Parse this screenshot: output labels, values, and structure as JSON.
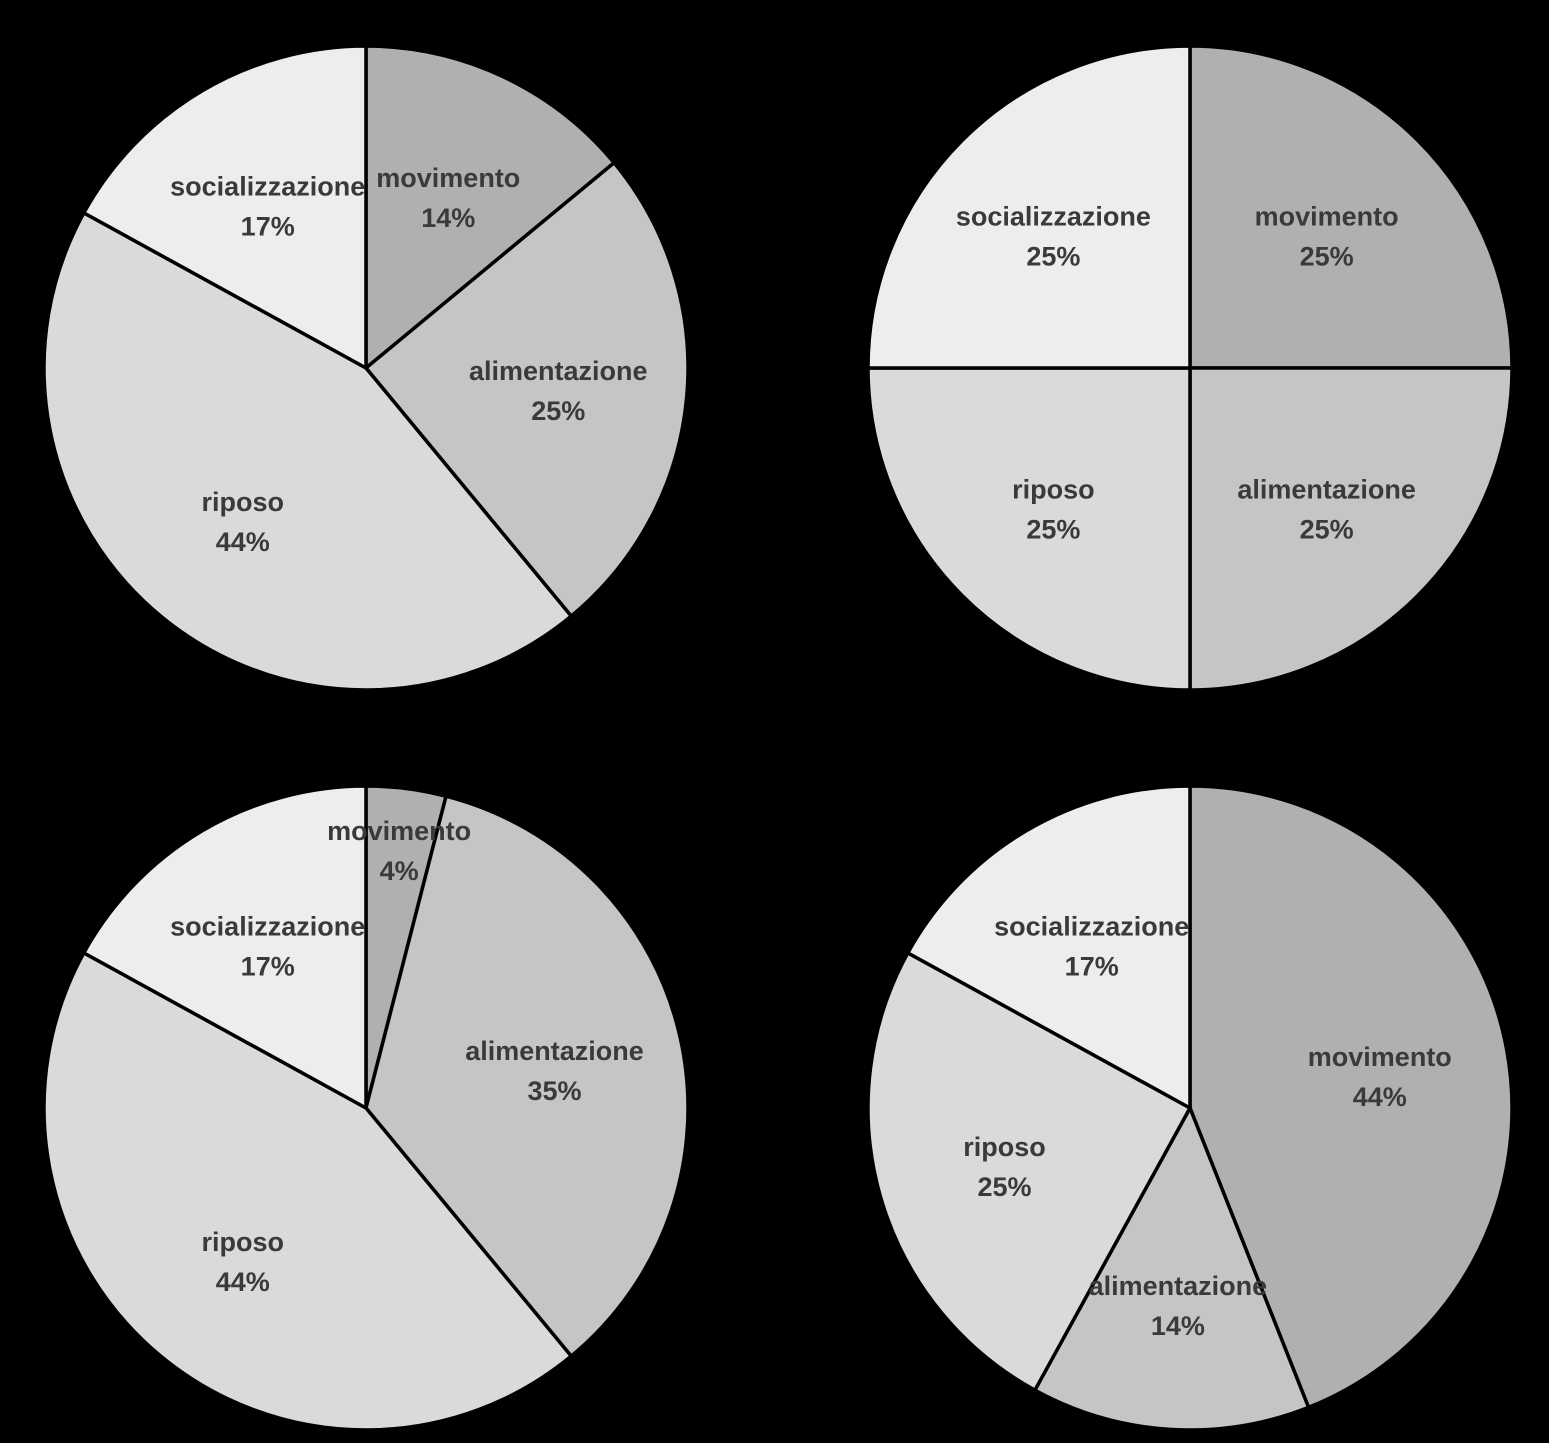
{
  "chart_data": [
    {
      "type": "pie",
      "position": "top-left",
      "title": "",
      "slices": [
        {
          "label": "movimento",
          "value": 14,
          "value_label": "14%",
          "color": "#b0b0af"
        },
        {
          "label": "alimentazione",
          "value": 25,
          "value_label": "25%",
          "color": "#c5c5c4"
        },
        {
          "label": "riposo",
          "value": 44,
          "value_label": "44%",
          "color": "#dadad9"
        },
        {
          "label": "socializzazione",
          "value": 17,
          "value_label": "17%",
          "color": "#ededec"
        }
      ]
    },
    {
      "type": "pie",
      "position": "top-right",
      "title": "",
      "slices": [
        {
          "label": "movimento",
          "value": 25,
          "value_label": "25%",
          "color": "#b0b0af"
        },
        {
          "label": "alimentazione",
          "value": 25,
          "value_label": "25%",
          "color": "#c5c5c4"
        },
        {
          "label": "riposo",
          "value": 25,
          "value_label": "25%",
          "color": "#dadad9"
        },
        {
          "label": "socializzazione",
          "value": 25,
          "value_label": "25%",
          "color": "#ededec"
        }
      ]
    },
    {
      "type": "pie",
      "position": "bottom-left",
      "title": "",
      "slices": [
        {
          "label": "movimento",
          "value": 4,
          "value_label": "4%",
          "color": "#b0b0af"
        },
        {
          "label": "alimentazione",
          "value": 35,
          "value_label": "35%",
          "color": "#c5c5c4"
        },
        {
          "label": "riposo",
          "value": 44,
          "value_label": "44%",
          "color": "#dadad9"
        },
        {
          "label": "socializzazione",
          "value": 17,
          "value_label": "17%",
          "color": "#ededec"
        }
      ]
    },
    {
      "type": "pie",
      "position": "bottom-right",
      "title": "",
      "slices": [
        {
          "label": "movimento",
          "value": 44,
          "value_label": "44%",
          "color": "#b0b0af"
        },
        {
          "label": "alimentazione",
          "value": 14,
          "value_label": "14%",
          "color": "#c5c5c4"
        },
        {
          "label": "riposo",
          "value": 25,
          "value_label": "25%",
          "color": "#dadad9"
        },
        {
          "label": "socializzazione",
          "value": 17,
          "value_label": "17%",
          "color": "#ededec"
        }
      ]
    }
  ]
}
